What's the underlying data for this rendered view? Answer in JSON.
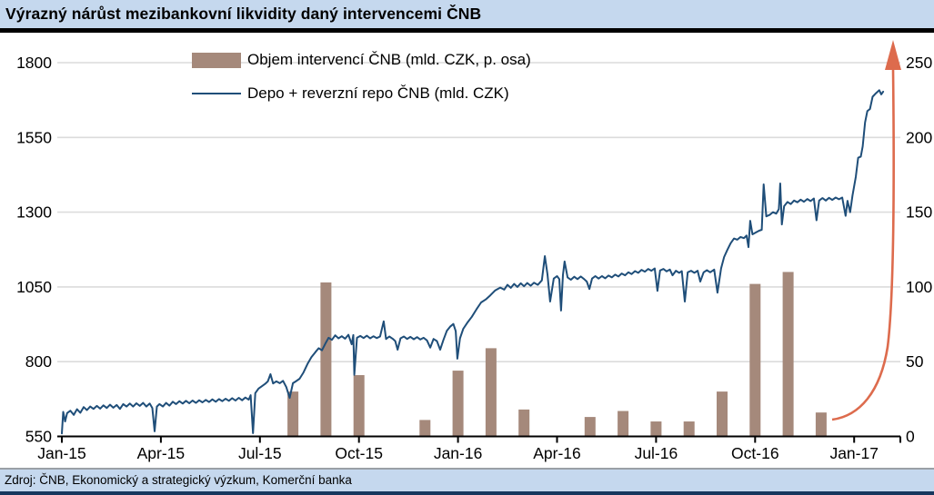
{
  "title": "Výrazný nárůst mezibankovní likvidity daný intervencemi ČNB",
  "footer": {
    "source": "Zdroj: ČNB, Ekonomický a strategický výzkum, Komerční banka"
  },
  "legend": [
    {
      "swatch": "bar",
      "label": "Objem intervencí ČNB (mld. CZK, p. osa)"
    },
    {
      "swatch": "line",
      "label": "Depo + reverzní repo ČNB (mld. CZK)"
    }
  ],
  "colors": {
    "title_bg": "#C5D8EE",
    "bar": "#A5897B",
    "line": "#1F4E79",
    "arrow": "#DD6B4D",
    "grid": "#DCDCDC",
    "axis": "#000000",
    "footer_bg": "#C5D8EE",
    "footer_bottom_border": "#17375E"
  },
  "chart_data": {
    "type": "combo",
    "title": "Výrazný nárůst mezibankovní likvidity daný intervencemi ČNB",
    "x_axis": {
      "unit": "months_since_Jan-15",
      "range": [
        0,
        25.4
      ],
      "ticks": [
        {
          "label": "Jan-15",
          "m": 0
        },
        {
          "label": "Apr-15",
          "m": 3
        },
        {
          "label": "Jul-15",
          "m": 6
        },
        {
          "label": "Oct-15",
          "m": 9
        },
        {
          "label": "Jan-16",
          "m": 12
        },
        {
          "label": "Apr-16",
          "m": 15
        },
        {
          "label": "Jul-16",
          "m": 18
        },
        {
          "label": "Oct-16",
          "m": 21
        },
        {
          "label": "Jan-17",
          "m": 24
        }
      ]
    },
    "left_axis": {
      "min": 550,
      "max": 1800,
      "ticks": [
        550,
        800,
        1050,
        1300,
        1550,
        1800
      ]
    },
    "right_axis": {
      "min": 0,
      "max": 250,
      "ticks": [
        0,
        50,
        100,
        150,
        200,
        250
      ]
    },
    "grid": true,
    "legend_position": "top-left-inside",
    "series": [
      {
        "name": "Objem intervencí ČNB (mld. CZK, p. osa)",
        "type": "bar",
        "axis": "right",
        "bars": [
          {
            "month": "Aug-15",
            "m": 7,
            "value": 30
          },
          {
            "month": "Sep-15",
            "m": 8,
            "value": 103
          },
          {
            "month": "Oct-15",
            "m": 9,
            "value": 41
          },
          {
            "month": "Dec-15",
            "m": 11,
            "value": 11
          },
          {
            "month": "Jan-16",
            "m": 12,
            "value": 44
          },
          {
            "month": "Feb-16",
            "m": 13,
            "value": 59
          },
          {
            "month": "Mar-16",
            "m": 14,
            "value": 18
          },
          {
            "month": "May-16",
            "m": 16,
            "value": 13
          },
          {
            "month": "Jun-16",
            "m": 17,
            "value": 17
          },
          {
            "month": "Jul-16",
            "m": 18,
            "value": 10
          },
          {
            "month": "Aug-16",
            "m": 19,
            "value": 10
          },
          {
            "month": "Sep-16",
            "m": 20,
            "value": 30
          },
          {
            "month": "Oct-16",
            "m": 21,
            "value": 102
          },
          {
            "month": "Nov-16",
            "m": 22,
            "value": 110
          },
          {
            "month": "Dec-16",
            "m": 23,
            "value": 16
          }
        ]
      },
      {
        "name": "Depo + reverzní repo ČNB (mld. CZK)",
        "type": "line",
        "axis": "left",
        "points": [
          [
            0,
            560
          ],
          [
            0.04,
            632
          ],
          [
            0.1,
            600
          ],
          [
            0.16,
            628
          ],
          [
            0.26,
            636
          ],
          [
            0.36,
            622
          ],
          [
            0.46,
            641
          ],
          [
            0.56,
            629
          ],
          [
            0.66,
            648
          ],
          [
            0.76,
            638
          ],
          [
            0.86,
            650
          ],
          [
            0.96,
            642
          ],
          [
            1.06,
            652
          ],
          [
            1.16,
            643
          ],
          [
            1.26,
            654
          ],
          [
            1.36,
            645
          ],
          [
            1.46,
            656
          ],
          [
            1.56,
            646
          ],
          [
            1.66,
            655
          ],
          [
            1.76,
            642
          ],
          [
            1.86,
            658
          ],
          [
            1.96,
            650
          ],
          [
            2.06,
            660
          ],
          [
            2.16,
            650
          ],
          [
            2.26,
            661
          ],
          [
            2.36,
            652
          ],
          [
            2.46,
            662
          ],
          [
            2.56,
            650
          ],
          [
            2.66,
            660
          ],
          [
            2.74,
            645
          ],
          [
            2.81,
            567
          ],
          [
            2.88,
            650
          ],
          [
            2.96,
            658
          ],
          [
            3.06,
            650
          ],
          [
            3.16,
            662
          ],
          [
            3.26,
            653
          ],
          [
            3.36,
            666
          ],
          [
            3.46,
            658
          ],
          [
            3.56,
            668
          ],
          [
            3.66,
            660
          ],
          [
            3.76,
            669
          ],
          [
            3.86,
            661
          ],
          [
            3.96,
            670
          ],
          [
            4.06,
            662
          ],
          [
            4.16,
            671
          ],
          [
            4.26,
            664
          ],
          [
            4.36,
            672
          ],
          [
            4.46,
            665
          ],
          [
            4.56,
            674
          ],
          [
            4.66,
            666
          ],
          [
            4.76,
            675
          ],
          [
            4.86,
            668
          ],
          [
            4.96,
            676
          ],
          [
            5.06,
            669
          ],
          [
            5.16,
            678
          ],
          [
            5.26,
            670
          ],
          [
            5.36,
            679
          ],
          [
            5.46,
            671
          ],
          [
            5.56,
            680
          ],
          [
            5.66,
            673
          ],
          [
            5.72,
            688
          ],
          [
            5.79,
            561
          ],
          [
            5.86,
            695
          ],
          [
            5.96,
            710
          ],
          [
            6.06,
            718
          ],
          [
            6.16,
            726
          ],
          [
            6.24,
            734
          ],
          [
            6.32,
            758
          ],
          [
            6.4,
            727
          ],
          [
            6.5,
            734
          ],
          [
            6.6,
            728
          ],
          [
            6.7,
            736
          ],
          [
            6.8,
            715
          ],
          [
            6.9,
            679
          ],
          [
            7,
            728
          ],
          [
            7.1,
            735
          ],
          [
            7.2,
            743
          ],
          [
            7.32,
            764
          ],
          [
            7.44,
            792
          ],
          [
            7.56,
            815
          ],
          [
            7.68,
            832
          ],
          [
            7.78,
            845
          ],
          [
            7.88,
            838
          ],
          [
            7.98,
            860
          ],
          [
            8.08,
            880
          ],
          [
            8.18,
            873
          ],
          [
            8.28,
            888
          ],
          [
            8.38,
            878
          ],
          [
            8.48,
            885
          ],
          [
            8.58,
            877
          ],
          [
            8.68,
            890
          ],
          [
            8.78,
            858
          ],
          [
            8.83,
            889
          ],
          [
            8.86,
            756
          ],
          [
            8.94,
            880
          ],
          [
            9.04,
            886
          ],
          [
            9.14,
            879
          ],
          [
            9.24,
            887
          ],
          [
            9.34,
            878
          ],
          [
            9.44,
            885
          ],
          [
            9.54,
            879
          ],
          [
            9.64,
            884
          ],
          [
            9.75,
            935
          ],
          [
            9.82,
            876
          ],
          [
            9.92,
            884
          ],
          [
            10.02,
            877
          ],
          [
            10.1,
            869
          ],
          [
            10.17,
            840
          ],
          [
            10.26,
            878
          ],
          [
            10.36,
            884
          ],
          [
            10.46,
            876
          ],
          [
            10.56,
            883
          ],
          [
            10.66,
            875
          ],
          [
            10.76,
            882
          ],
          [
            10.86,
            874
          ],
          [
            10.96,
            880
          ],
          [
            11.06,
            871
          ],
          [
            11.16,
            847
          ],
          [
            11.26,
            876
          ],
          [
            11.36,
            869
          ],
          [
            11.46,
            840
          ],
          [
            11.56,
            873
          ],
          [
            11.66,
            903
          ],
          [
            11.76,
            917
          ],
          [
            11.86,
            926
          ],
          [
            11.93,
            902
          ],
          [
            11.98,
            810
          ],
          [
            12.06,
            878
          ],
          [
            12.16,
            910
          ],
          [
            12.28,
            930
          ],
          [
            12.42,
            950
          ],
          [
            12.56,
            975
          ],
          [
            12.7,
            998
          ],
          [
            12.84,
            1008
          ],
          [
            12.98,
            1022
          ],
          [
            13.12,
            1038
          ],
          [
            13.28,
            1048
          ],
          [
            13.4,
            1041
          ],
          [
            13.5,
            1057
          ],
          [
            13.6,
            1047
          ],
          [
            13.7,
            1060
          ],
          [
            13.8,
            1050
          ],
          [
            13.9,
            1062
          ],
          [
            14,
            1052
          ],
          [
            14.1,
            1063
          ],
          [
            14.2,
            1054
          ],
          [
            14.3,
            1064
          ],
          [
            14.42,
            1057
          ],
          [
            14.54,
            1072
          ],
          [
            14.63,
            1153
          ],
          [
            14.71,
            1092
          ],
          [
            14.79,
            1001
          ],
          [
            14.9,
            1078
          ],
          [
            15,
            1086
          ],
          [
            15.07,
            1076
          ],
          [
            15.12,
            971
          ],
          [
            15.18,
            1090
          ],
          [
            15.23,
            1135
          ],
          [
            15.32,
            1082
          ],
          [
            15.42,
            1074
          ],
          [
            15.52,
            1084
          ],
          [
            15.62,
            1076
          ],
          [
            15.72,
            1085
          ],
          [
            15.82,
            1076
          ],
          [
            15.9,
            1068
          ],
          [
            15.98,
            1043
          ],
          [
            16.06,
            1078
          ],
          [
            16.16,
            1086
          ],
          [
            16.26,
            1078
          ],
          [
            16.36,
            1086
          ],
          [
            16.46,
            1079
          ],
          [
            16.56,
            1088
          ],
          [
            16.66,
            1082
          ],
          [
            16.76,
            1091
          ],
          [
            16.86,
            1085
          ],
          [
            16.96,
            1095
          ],
          [
            17.06,
            1089
          ],
          [
            17.16,
            1099
          ],
          [
            17.26,
            1093
          ],
          [
            17.36,
            1103
          ],
          [
            17.46,
            1097
          ],
          [
            17.56,
            1107
          ],
          [
            17.66,
            1101
          ],
          [
            17.76,
            1110
          ],
          [
            17.86,
            1104
          ],
          [
            17.96,
            1112
          ],
          [
            18.04,
            1037
          ],
          [
            18.12,
            1105
          ],
          [
            18.22,
            1110
          ],
          [
            18.32,
            1102
          ],
          [
            18.42,
            1108
          ],
          [
            18.5,
            1089
          ],
          [
            18.6,
            1104
          ],
          [
            18.7,
            1097
          ],
          [
            18.78,
            1103
          ],
          [
            18.87,
            1001
          ],
          [
            18.96,
            1099
          ],
          [
            19.06,
            1104
          ],
          [
            19.16,
            1097
          ],
          [
            19.26,
            1104
          ],
          [
            19.34,
            1068
          ],
          [
            19.44,
            1099
          ],
          [
            19.54,
            1106
          ],
          [
            19.64,
            1099
          ],
          [
            19.76,
            1108
          ],
          [
            19.86,
            1031
          ],
          [
            19.97,
            1112
          ],
          [
            20.06,
            1150
          ],
          [
            20.16,
            1174
          ],
          [
            20.26,
            1196
          ],
          [
            20.36,
            1212
          ],
          [
            20.46,
            1208
          ],
          [
            20.56,
            1217
          ],
          [
            20.66,
            1213
          ],
          [
            20.74,
            1222
          ],
          [
            20.8,
            1183
          ],
          [
            20.85,
            1271
          ],
          [
            20.92,
            1226
          ],
          [
            21.02,
            1232
          ],
          [
            21.12,
            1238
          ],
          [
            21.2,
            1241
          ],
          [
            21.26,
            1393
          ],
          [
            21.34,
            1286
          ],
          [
            21.44,
            1291
          ],
          [
            21.54,
            1300
          ],
          [
            21.64,
            1295
          ],
          [
            21.72,
            1310
          ],
          [
            21.76,
            1396
          ],
          [
            21.81,
            1259
          ],
          [
            21.88,
            1320
          ],
          [
            21.98,
            1334
          ],
          [
            22.08,
            1327
          ],
          [
            22.18,
            1339
          ],
          [
            22.28,
            1333
          ],
          [
            22.38,
            1342
          ],
          [
            22.48,
            1335
          ],
          [
            22.58,
            1344
          ],
          [
            22.68,
            1337
          ],
          [
            22.78,
            1346
          ],
          [
            22.86,
            1273
          ],
          [
            22.94,
            1339
          ],
          [
            23.04,
            1347
          ],
          [
            23.14,
            1339
          ],
          [
            23.24,
            1348
          ],
          [
            23.34,
            1341
          ],
          [
            23.44,
            1349
          ],
          [
            23.54,
            1343
          ],
          [
            23.64,
            1349
          ],
          [
            23.74,
            1288
          ],
          [
            23.8,
            1338
          ],
          [
            23.88,
            1300
          ],
          [
            23.95,
            1356
          ],
          [
            24.05,
            1418
          ],
          [
            24.12,
            1482
          ],
          [
            24.2,
            1486
          ],
          [
            24.26,
            1520
          ],
          [
            24.33,
            1600
          ],
          [
            24.4,
            1638
          ],
          [
            24.48,
            1645
          ],
          [
            24.56,
            1686
          ],
          [
            24.66,
            1698
          ],
          [
            24.76,
            1708
          ],
          [
            24.82,
            1694
          ],
          [
            24.88,
            1703
          ]
        ]
      }
    ],
    "annotation": {
      "type": "arrow-up",
      "color": "#DD6B4D",
      "description": "curved rising arrow along right edge toward 250"
    }
  }
}
